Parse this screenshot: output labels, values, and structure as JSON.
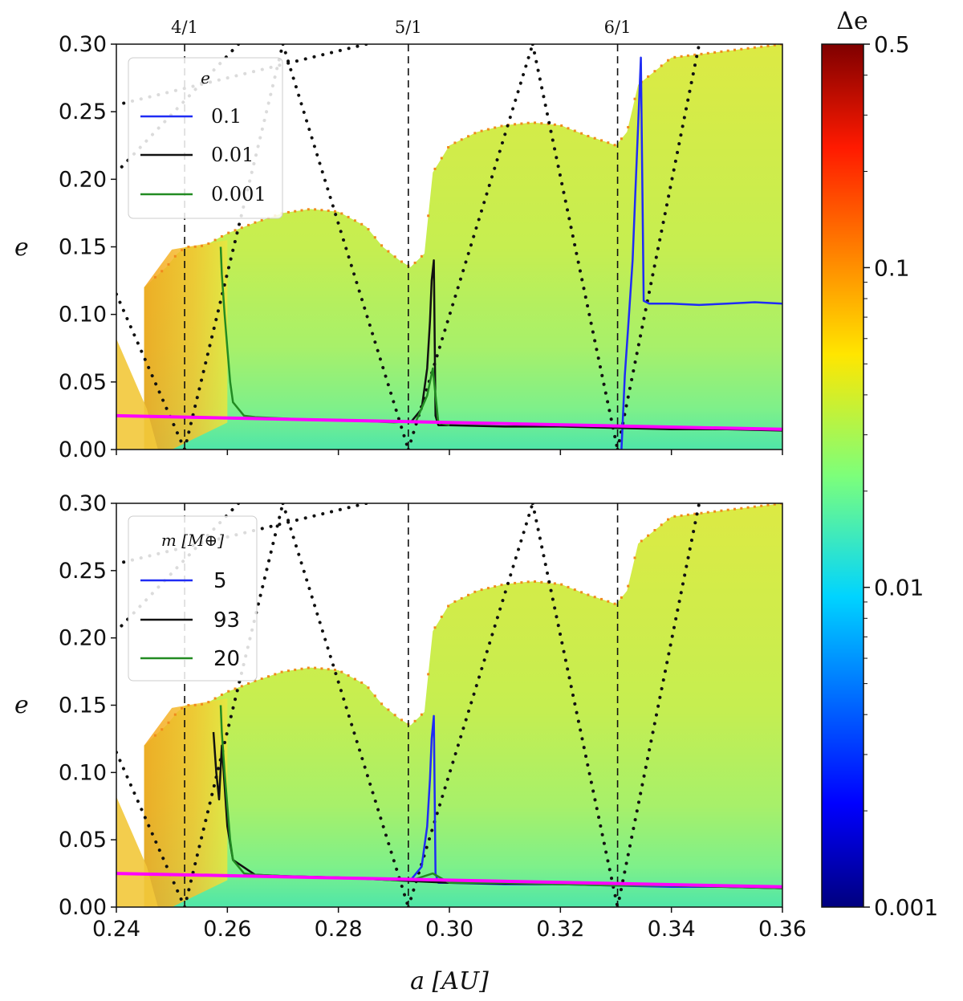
{
  "chart_data": [
    {
      "type": "heatmap",
      "panel": "top",
      "xlabel": "a [AU]",
      "ylabel": "e",
      "xlim": [
        0.24,
        0.36
      ],
      "ylim": [
        0.0,
        0.3
      ],
      "xticks": [
        "0.24",
        "0.26",
        "0.28",
        "0.30",
        "0.32",
        "0.34",
        "0.36"
      ],
      "yticks": [
        "0.00",
        "0.05",
        "0.10",
        "0.15",
        "0.20",
        "0.25",
        "0.30"
      ],
      "resonances": [
        {
          "label": "4/1",
          "a": 0.2523
        },
        {
          "label": "5/1",
          "a": 0.2926
        },
        {
          "label": "6/1",
          "a": 0.3303
        }
      ],
      "stability_boundary": {
        "a": [
          0.245,
          0.249,
          0.251,
          0.2525,
          0.254,
          0.256,
          0.26,
          0.265,
          0.27,
          0.275,
          0.28,
          0.285,
          0.288,
          0.291,
          0.293,
          0.2955,
          0.297,
          0.3,
          0.305,
          0.31,
          0.315,
          0.32,
          0.325,
          0.328,
          0.33,
          0.332,
          0.334,
          0.34,
          0.35,
          0.36
        ],
        "e_max": [
          0.12,
          0.135,
          0.145,
          0.15,
          0.15,
          0.151,
          0.16,
          0.168,
          0.175,
          0.178,
          0.176,
          0.165,
          0.15,
          0.14,
          0.135,
          0.145,
          0.205,
          0.225,
          0.235,
          0.24,
          0.242,
          0.24,
          0.232,
          0.228,
          0.225,
          0.235,
          0.27,
          0.29,
          0.295,
          0.3
        ]
      },
      "legend": {
        "title": "e",
        "position": "upper-left",
        "entries": [
          {
            "label": "0.1",
            "color": "#1f2cf5"
          },
          {
            "label": "0.01",
            "color": "#111111"
          },
          {
            "label": "0.001",
            "color": "#228b22"
          }
        ]
      },
      "series": [
        {
          "name": "0.1",
          "color": "#1f2cf5",
          "a": [
            0.331,
            0.3316,
            0.3322,
            0.333,
            0.3335,
            0.334,
            0.3345,
            0.335,
            0.336,
            0.34,
            0.345,
            0.35,
            0.355,
            0.36
          ],
          "e": [
            0.0,
            0.055,
            0.09,
            0.14,
            0.19,
            0.24,
            0.29,
            0.11,
            0.108,
            0.108,
            0.107,
            0.108,
            0.109,
            0.108
          ]
        },
        {
          "name": "0.01",
          "color": "#111111",
          "a": [
            0.293,
            0.295,
            0.296,
            0.2965,
            0.2968,
            0.2972,
            0.2975,
            0.298,
            0.3,
            0.31,
            0.32,
            0.33,
            0.34,
            0.35,
            0.36
          ],
          "e": [
            0.02,
            0.03,
            0.06,
            0.095,
            0.125,
            0.14,
            0.025,
            0.018,
            0.018,
            0.017,
            0.017,
            0.016,
            0.015,
            0.015,
            0.014
          ]
        },
        {
          "name": "0.001",
          "color": "#228b22",
          "a": [
            0.2588,
            0.259,
            0.2595,
            0.26,
            0.2605,
            0.261,
            0.263,
            0.265,
            0.27,
            0.275,
            0.28,
            0.285,
            0.29,
            0.294,
            0.296,
            0.297,
            0.298,
            0.3
          ],
          "e": [
            0.15,
            0.13,
            0.1,
            0.075,
            0.05,
            0.035,
            0.025,
            0.024,
            0.023,
            0.022,
            0.022,
            0.021,
            0.02,
            0.021,
            0.04,
            0.06,
            0.02,
            0.018
          ]
        },
        {
          "name": "reference",
          "color": "#ff00ff",
          "a": [
            0.24,
            0.36
          ],
          "e": [
            0.025,
            0.015
          ]
        }
      ]
    },
    {
      "type": "heatmap",
      "panel": "bottom",
      "xlabel": "a [AU]",
      "ylabel": "e",
      "xlim": [
        0.24,
        0.36
      ],
      "ylim": [
        0.0,
        0.3
      ],
      "xticks": [
        "0.24",
        "0.26",
        "0.28",
        "0.30",
        "0.32",
        "0.34",
        "0.36"
      ],
      "yticks": [
        "0.00",
        "0.05",
        "0.10",
        "0.15",
        "0.20",
        "0.25",
        "0.30"
      ],
      "resonances": [
        {
          "label": "4/1",
          "a": 0.2523
        },
        {
          "label": "5/1",
          "a": 0.2926
        },
        {
          "label": "6/1",
          "a": 0.3303
        }
      ],
      "legend": {
        "title": "m [M⊕]",
        "position": "upper-left",
        "entries": [
          {
            "label": "5",
            "color": "#1f2cf5"
          },
          {
            "label": "93",
            "color": "#111111"
          },
          {
            "label": "20",
            "color": "#228b22"
          }
        ]
      },
      "series": [
        {
          "name": "5",
          "color": "#1f2cf5",
          "a": [
            0.293,
            0.295,
            0.296,
            0.2965,
            0.2968,
            0.2972,
            0.2975,
            0.298,
            0.3,
            0.31,
            0.32,
            0.33,
            0.34,
            0.35,
            0.36
          ],
          "e": [
            0.02,
            0.03,
            0.06,
            0.095,
            0.125,
            0.142,
            0.025,
            0.018,
            0.018,
            0.017,
            0.017,
            0.016,
            0.015,
            0.015,
            0.014
          ]
        },
        {
          "name": "93",
          "color": "#111111",
          "a": [
            0.2575,
            0.258,
            0.2585,
            0.259,
            0.2595,
            0.26,
            0.261,
            0.265,
            0.27,
            0.28,
            0.29,
            0.3,
            0.32,
            0.34,
            0.36
          ],
          "e": [
            0.13,
            0.1,
            0.08,
            0.12,
            0.09,
            0.06,
            0.035,
            0.024,
            0.023,
            0.022,
            0.02,
            0.018,
            0.017,
            0.016,
            0.014
          ]
        },
        {
          "name": "20",
          "color": "#228b22",
          "a": [
            0.2588,
            0.259,
            0.2595,
            0.26,
            0.2605,
            0.261,
            0.263,
            0.265,
            0.27,
            0.275,
            0.28,
            0.285,
            0.29,
            0.294,
            0.297,
            0.3,
            0.31,
            0.32,
            0.33,
            0.34,
            0.35,
            0.36
          ],
          "e": [
            0.15,
            0.13,
            0.1,
            0.075,
            0.05,
            0.035,
            0.025,
            0.024,
            0.023,
            0.022,
            0.022,
            0.021,
            0.02,
            0.021,
            0.025,
            0.018,
            0.018,
            0.017,
            0.016,
            0.016,
            0.015,
            0.014
          ]
        },
        {
          "name": "reference",
          "color": "#ff00ff",
          "a": [
            0.24,
            0.36
          ],
          "e": [
            0.025,
            0.015
          ]
        }
      ]
    }
  ],
  "colorbar": {
    "title": "Δe",
    "scale": "log",
    "min": 0.001,
    "max": 0.5,
    "ticks": [
      "0.5",
      "0.1",
      "0.01",
      "0.001"
    ],
    "tick_values": [
      0.5,
      0.1,
      0.01,
      0.001
    ],
    "colormap": "jet"
  }
}
